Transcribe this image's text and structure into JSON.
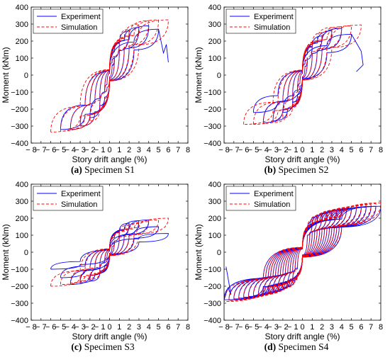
{
  "chart_data": [
    {
      "type": "line",
      "caption_letter": "(a)",
      "caption_text": " Specimen S1",
      "xlabel": "Story drift angle (%)",
      "ylabel": "Moment (kNm)",
      "xlim": [
        -8,
        8
      ],
      "ylim": [
        -400,
        400
      ],
      "xticks": [
        -8,
        -7,
        -6,
        -5,
        -4,
        -3,
        -2,
        -1,
        0,
        1,
        2,
        3,
        4,
        5,
        6,
        7,
        8
      ],
      "yticks": [
        -400,
        -300,
        -200,
        -100,
        0,
        100,
        200,
        300,
        400
      ],
      "grid": false,
      "legend_position": "top-left",
      "series": [
        {
          "name": "Experiment",
          "color": "#0000ff",
          "style": "solid",
          "loops": [
            [
              0.5,
              100,
              -0.5,
              -100
            ],
            [
              1,
              190,
              -1,
              -180
            ],
            [
              2,
              260,
              -2,
              -250
            ],
            [
              3,
              280,
              -3,
              -300
            ],
            [
              4,
              290,
              -4,
              -320
            ],
            [
              5,
              270,
              -5,
              -320
            ]
          ],
          "extra": [
            [
              5,
              270
            ],
            [
              5.5,
              130
            ],
            [
              5.8,
              180
            ],
            [
              6,
              75
            ]
          ]
        },
        {
          "name": "Simulation",
          "color": "#ff0000",
          "style": "dashed",
          "loops": [
            [
              0.5,
              110,
              -0.5,
              -100
            ],
            [
              1,
              200,
              -1,
              -190
            ],
            [
              2,
              270,
              -2,
              -270
            ],
            [
              3,
              300,
              -3,
              -300
            ],
            [
              4,
              320,
              -4,
              -320
            ],
            [
              5,
              325,
              -5,
              -330
            ],
            [
              6,
              325,
              -6,
              -335
            ]
          ]
        }
      ]
    },
    {
      "type": "line",
      "caption_letter": "(b)",
      "caption_text": " Specimen S2",
      "xlabel": "Story drift angle (%)",
      "ylabel": "Moment (kNm)",
      "xlim": [
        -8,
        8
      ],
      "ylim": [
        -400,
        400
      ],
      "xticks": [
        -8,
        -7,
        -6,
        -5,
        -4,
        -3,
        -2,
        -1,
        0,
        1,
        2,
        3,
        4,
        5,
        6,
        7,
        8
      ],
      "yticks": [
        -400,
        -300,
        -200,
        -100,
        0,
        100,
        200,
        300,
        400
      ],
      "grid": false,
      "legend_position": "top-left",
      "series": [
        {
          "name": "Experiment",
          "color": "#0000ff",
          "style": "solid",
          "loops": [
            [
              0.5,
              90,
              -0.5,
              -90
            ],
            [
              1,
              170,
              -1,
              -160
            ],
            [
              2,
              230,
              -2,
              -220
            ],
            [
              3,
              260,
              -3,
              -270
            ],
            [
              4,
              275,
              -4,
              -280
            ],
            [
              5,
              240,
              -5,
              -220
            ]
          ],
          "extra": [
            [
              5,
              240
            ],
            [
              6,
              140
            ],
            [
              6.2,
              60
            ],
            [
              5.5,
              20
            ]
          ]
        },
        {
          "name": "Simulation",
          "color": "#ff0000",
          "style": "dashed",
          "loops": [
            [
              0.5,
              100,
              -0.5,
              -100
            ],
            [
              1,
              190,
              -1,
              -180
            ],
            [
              2,
              250,
              -2,
              -250
            ],
            [
              3,
              280,
              -3,
              -280
            ],
            [
              4,
              285,
              -4,
              -285
            ],
            [
              5,
              290,
              -5,
              -290
            ],
            [
              6,
              295,
              -6,
              -290
            ]
          ]
        }
      ]
    },
    {
      "type": "line",
      "caption_letter": "(c)",
      "caption_text": " Specimen S3",
      "xlabel": "Story drift angle (%)",
      "ylabel": "Moment (kNm)",
      "xlim": [
        -8,
        8
      ],
      "ylim": [
        -400,
        400
      ],
      "xticks": [
        -8,
        -7,
        -6,
        -5,
        -4,
        -3,
        -2,
        -1,
        0,
        1,
        2,
        3,
        4,
        5,
        6,
        7,
        8
      ],
      "yticks": [
        -400,
        -300,
        -200,
        -100,
        0,
        100,
        200,
        300,
        400
      ],
      "grid": false,
      "legend_position": "top-left",
      "series": [
        {
          "name": "Experiment",
          "color": "#0000ff",
          "style": "solid",
          "loops": [
            [
              0.5,
              60,
              -0.5,
              -60
            ],
            [
              1,
              120,
              -1,
              -110
            ],
            [
              2,
              170,
              -2,
              -170
            ],
            [
              3,
              185,
              -3,
              -180
            ],
            [
              4,
              190,
              -4,
              -190
            ],
            [
              5,
              150,
              -5,
              -150
            ],
            [
              6,
              110,
              -6,
              -100
            ]
          ]
        },
        {
          "name": "Simulation",
          "color": "#ff0000",
          "style": "dashed",
          "loops": [
            [
              0.5,
              60,
              -0.5,
              -60
            ],
            [
              1,
              120,
              -1,
              -115
            ],
            [
              2,
              160,
              -2,
              -160
            ],
            [
              3,
              170,
              -3,
              -170
            ],
            [
              4,
              180,
              -4,
              -180
            ],
            [
              5,
              190,
              -5,
              -190
            ],
            [
              6,
              200,
              -6,
              -200
            ]
          ]
        }
      ]
    },
    {
      "type": "line",
      "caption_letter": "(d)",
      "caption_text": " Specimen S4",
      "xlabel": "Story drift angle (%)",
      "ylabel": "Moment (kNm)",
      "xlim": [
        -8,
        8
      ],
      "ylim": [
        -400,
        400
      ],
      "xticks": [
        -8,
        -7,
        -6,
        -5,
        -4,
        -3,
        -2,
        -1,
        0,
        1,
        2,
        3,
        4,
        5,
        6,
        7,
        8
      ],
      "yticks": [
        -400,
        -300,
        -200,
        -100,
        0,
        100,
        200,
        300,
        400
      ],
      "grid": false,
      "legend_position": "top-left",
      "series": [
        {
          "name": "Experiment",
          "color": "#0000ff",
          "style": "solid",
          "loops": [
            [
              1,
              180,
              -1,
              -170
            ],
            [
              1.5,
              210,
              -1.5,
              -200
            ],
            [
              2,
              220,
              -2,
              -210
            ],
            [
              2.5,
              230,
              -2.5,
              -220
            ],
            [
              3,
              240,
              -3,
              -230
            ],
            [
              3.5,
              245,
              -3.5,
              -240
            ],
            [
              4,
              250,
              -4,
              -245
            ],
            [
              4.5,
              255,
              -4.5,
              -250
            ],
            [
              5,
              258,
              -5,
              -255
            ],
            [
              5.5,
              260,
              -5.5,
              -260
            ],
            [
              6,
              262,
              -6,
              -265
            ],
            [
              6.5,
              265,
              -6.5,
              -270
            ],
            [
              7,
              268,
              -7,
              -275
            ],
            [
              7.5,
              270,
              -7.5,
              -280
            ],
            [
              8,
              270,
              -8,
              -280
            ]
          ],
          "extra": [
            [
              -8,
              -280
            ],
            [
              -7.6,
              -210
            ],
            [
              -7.3,
              -250
            ],
            [
              -7.8,
              -85
            ]
          ]
        },
        {
          "name": "Simulation",
          "color": "#ff0000",
          "style": "dashed",
          "loops": [
            [
              1,
              190,
              -1,
              -180
            ],
            [
              1.5,
              215,
              -1.5,
              -205
            ],
            [
              2,
              225,
              -2,
              -215
            ],
            [
              2.5,
              235,
              -2.5,
              -225
            ],
            [
              3,
              245,
              -3,
              -235
            ],
            [
              3.5,
              250,
              -3.5,
              -245
            ],
            [
              4,
              255,
              -4,
              -250
            ],
            [
              4.5,
              260,
              -4.5,
              -255
            ],
            [
              5,
              265,
              -5,
              -260
            ],
            [
              5.5,
              268,
              -5.5,
              -265
            ],
            [
              6,
              272,
              -6,
              -270
            ],
            [
              6.5,
              276,
              -6.5,
              -275
            ],
            [
              7,
              280,
              -7,
              -280
            ],
            [
              7.5,
              285,
              -7.5,
              -285
            ],
            [
              8,
              290,
              -8,
              -290
            ]
          ]
        }
      ]
    }
  ]
}
